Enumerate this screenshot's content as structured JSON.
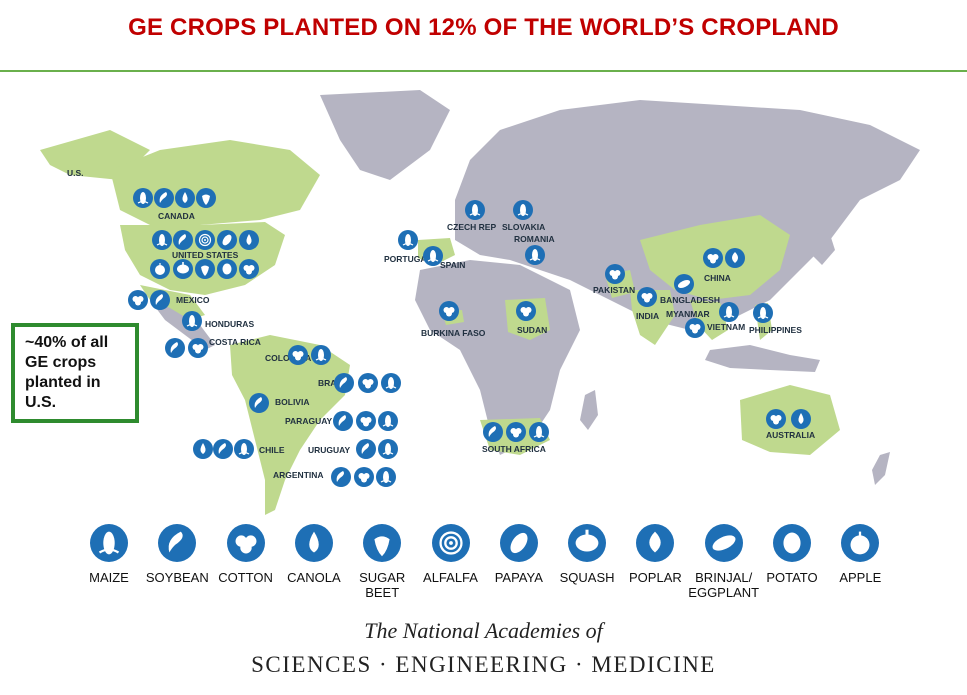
{
  "title": "GE CROPS PLANTED ON 12% OF THE WORLD’S CROPLAND",
  "callout_lines": [
    "~40% of all",
    "GE crops",
    "planted in",
    "U.S."
  ],
  "colors": {
    "title": "#c00000",
    "ge_country": "#bfd98e",
    "other_land": "#b5b4c2",
    "icon": "#1e6fb5",
    "callout_border": "#2e8b2e"
  },
  "crops": [
    {
      "id": "maize",
      "label": "MAIZE",
      "icon": "maize-icon"
    },
    {
      "id": "soybean",
      "label": "SOYBEAN",
      "icon": "soybean-icon"
    },
    {
      "id": "cotton",
      "label": "COTTON",
      "icon": "cotton-icon"
    },
    {
      "id": "canola",
      "label": "CANOLA",
      "icon": "canola-icon"
    },
    {
      "id": "sugar-beet",
      "label": "SUGAR\nBEET",
      "icon": "sugar-beet-icon"
    },
    {
      "id": "alfalfa",
      "label": "ALFALFA",
      "icon": "alfalfa-icon"
    },
    {
      "id": "papaya",
      "label": "PAPAYA",
      "icon": "papaya-icon"
    },
    {
      "id": "squash",
      "label": "SQUASH",
      "icon": "squash-icon"
    },
    {
      "id": "poplar",
      "label": "POPLAR",
      "icon": "poplar-icon"
    },
    {
      "id": "brinjal",
      "label": "BRINJAL/\nEGGPLANT",
      "icon": "eggplant-icon"
    },
    {
      "id": "potato",
      "label": "POTATO",
      "icon": "potato-icon"
    },
    {
      "id": "apple",
      "label": "APPLE",
      "icon": "apple-icon"
    }
  ],
  "countries": [
    {
      "name": "U.S.",
      "crops": []
    },
    {
      "name": "CANADA",
      "crops": [
        "maize",
        "soybean",
        "canola",
        "sugar-beet"
      ]
    },
    {
      "name": "UNITED STATES",
      "crops": [
        "maize",
        "soybean",
        "alfalfa",
        "papaya",
        "canola",
        "apple",
        "squash",
        "sugar-beet",
        "potato",
        "cotton"
      ]
    },
    {
      "name": "MEXICO",
      "crops": [
        "cotton",
        "soybean"
      ]
    },
    {
      "name": "HONDURAS",
      "crops": [
        "maize"
      ]
    },
    {
      "name": "COSTA RICA",
      "crops": [
        "soybean",
        "cotton"
      ]
    },
    {
      "name": "COLOMBIA",
      "crops": [
        "cotton",
        "maize"
      ]
    },
    {
      "name": "BRAZIL",
      "crops": [
        "soybean",
        "cotton",
        "maize"
      ]
    },
    {
      "name": "BOLIVIA",
      "crops": [
        "soybean"
      ]
    },
    {
      "name": "PARAGUAY",
      "crops": [
        "soybean",
        "cotton",
        "maize"
      ]
    },
    {
      "name": "CHILE",
      "crops": [
        "canola",
        "soybean",
        "maize"
      ]
    },
    {
      "name": "URUGUAY",
      "crops": [
        "soybean",
        "maize"
      ]
    },
    {
      "name": "ARGENTINA",
      "crops": [
        "soybean",
        "cotton",
        "maize"
      ]
    },
    {
      "name": "PORTUGAL",
      "crops": [
        "maize"
      ]
    },
    {
      "name": "SPAIN",
      "crops": [
        "maize"
      ]
    },
    {
      "name": "CZECH REP",
      "crops": [
        "maize"
      ]
    },
    {
      "name": "SLOVAKIA",
      "crops": [
        "maize"
      ]
    },
    {
      "name": "ROMANIA",
      "crops": [
        "maize"
      ]
    },
    {
      "name": "BURKINA FASO",
      "crops": [
        "cotton"
      ]
    },
    {
      "name": "SUDAN",
      "crops": [
        "cotton"
      ]
    },
    {
      "name": "SOUTH AFRICA",
      "crops": [
        "soybean",
        "cotton",
        "maize"
      ]
    },
    {
      "name": "PAKISTAN",
      "crops": [
        "cotton"
      ]
    },
    {
      "name": "INDIA",
      "crops": [
        "cotton"
      ]
    },
    {
      "name": "CHINA",
      "crops": [
        "cotton",
        "poplar"
      ]
    },
    {
      "name": "BANGLADESH",
      "crops": [
        "brinjal"
      ]
    },
    {
      "name": "MYANMAR",
      "crops": [
        "cotton"
      ]
    },
    {
      "name": "VIETNAM",
      "crops": [
        "maize"
      ]
    },
    {
      "name": "PHILIPPINES",
      "crops": [
        "maize"
      ]
    },
    {
      "name": "AUSTRALIA",
      "crops": [
        "cotton",
        "canola"
      ]
    }
  ],
  "footer": {
    "line1": "The National Academies of",
    "line2": "SCIENCES · ENGINEERING · MEDICINE"
  }
}
